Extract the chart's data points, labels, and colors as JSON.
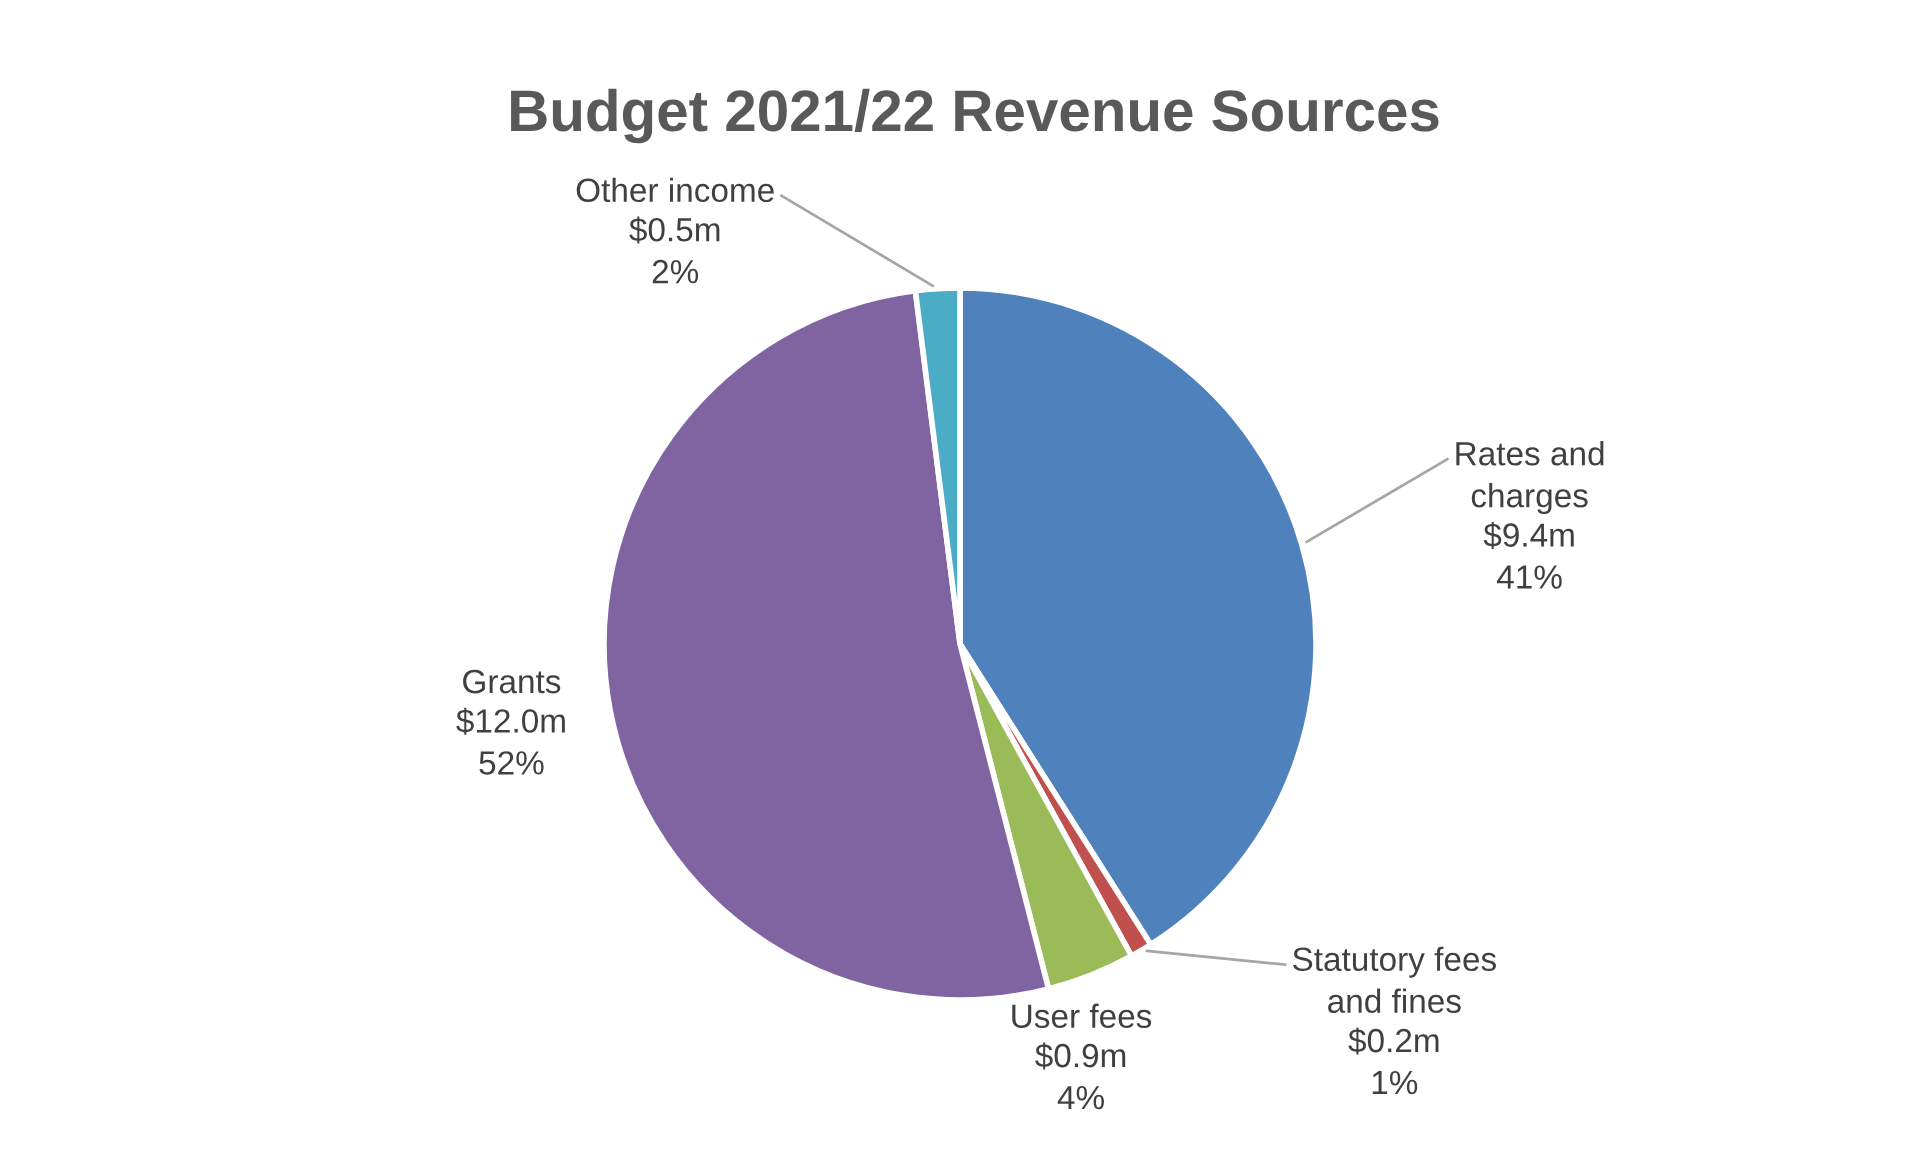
{
  "chart_data": {
    "type": "pie",
    "title": "Budget 2021/22 Revenue Sources",
    "categories": [
      "Rates and\ncharges",
      "Statutory fees\nand fines",
      "User fees",
      "Grants",
      "Other income"
    ],
    "values": [
      41,
      1,
      4,
      52,
      2
    ],
    "value_labels": [
      "$9.4m\n41%",
      "$0.2m\n1%",
      "$0.9m\n4%",
      "$12.0m\n52%",
      "$0.5m\n2%"
    ],
    "colors": [
      "#4f81bd",
      "#c0504d",
      "#9bbb59",
      "#8064a2",
      "#4bacc6"
    ],
    "legend": false
  }
}
